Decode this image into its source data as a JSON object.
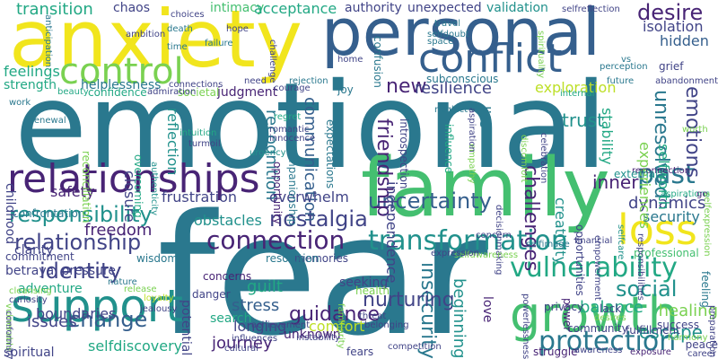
{
  "palette": {
    "purple": "#482475",
    "indigo": "#414487",
    "blue": "#355f8d",
    "steel": "#2a788e",
    "teal": "#21918c",
    "green": "#22a884",
    "lime": "#44bf70",
    "grass": "#7ad151",
    "yellowgreen": "#bddf26",
    "yellow": "#f1e51d"
  },
  "words": [
    {
      "text": "fear",
      "color": "steel"
    },
    {
      "text": "emotional",
      "color": "steel"
    },
    {
      "text": "family",
      "color": "lime"
    },
    {
      "text": "anxiety",
      "color": "yellow"
    },
    {
      "text": "personal",
      "color": "blue"
    },
    {
      "text": "relationships",
      "color": "purple"
    },
    {
      "text": "growth",
      "color": "lime"
    },
    {
      "text": "support",
      "color": "teal"
    },
    {
      "text": "conflict",
      "color": "blue"
    },
    {
      "text": "control",
      "color": "grass"
    },
    {
      "text": "loss",
      "color": "yellow"
    },
    {
      "text": "vulnerability",
      "color": "green"
    },
    {
      "text": "connection",
      "color": "purple"
    },
    {
      "text": "transformation",
      "color": "teal"
    },
    {
      "text": "relationship",
      "color": "indigo"
    },
    {
      "text": "protection",
      "color": "steel"
    },
    {
      "text": "responsibility",
      "color": "teal"
    },
    {
      "text": "change",
      "color": "blue"
    },
    {
      "text": "identity",
      "color": "indigo"
    },
    {
      "text": "desire",
      "color": "purple"
    },
    {
      "text": "past",
      "color": "steel"
    },
    {
      "text": "uncertainty",
      "color": "blue"
    },
    {
      "text": "unresolved",
      "color": "steel"
    },
    {
      "text": "emotions",
      "color": "indigo"
    },
    {
      "text": "social",
      "color": "teal"
    },
    {
      "text": "nostalgia",
      "color": "indigo"
    },
    {
      "text": "guidance",
      "color": "purple"
    },
    {
      "text": "insecurity",
      "color": "steel"
    },
    {
      "text": "new",
      "color": "purple"
    },
    {
      "text": "resilience",
      "color": "indigo"
    },
    {
      "text": "transition",
      "color": "green"
    },
    {
      "text": "intimacy",
      "color": "lime"
    },
    {
      "text": "acceptance",
      "color": "green"
    },
    {
      "text": "authority",
      "color": "indigo"
    },
    {
      "text": "unexpected",
      "color": "indigo"
    },
    {
      "text": "validation",
      "color": "teal"
    },
    {
      "text": "isolation",
      "color": "indigo"
    },
    {
      "text": "hidden",
      "color": "blue"
    },
    {
      "text": "trust",
      "color": "teal"
    },
    {
      "text": "stability",
      "color": "green"
    },
    {
      "text": "inner",
      "color": "purple"
    },
    {
      "text": "dynamics",
      "color": "indigo"
    },
    {
      "text": "security",
      "color": "steel"
    },
    {
      "text": "friendship",
      "color": "purple"
    },
    {
      "text": "communication",
      "color": "blue"
    },
    {
      "text": "recognition",
      "color": "steel"
    },
    {
      "text": "challenges",
      "color": "purple"
    },
    {
      "text": "exploration",
      "color": "yellowgreen"
    },
    {
      "text": "experiences",
      "color": "grass"
    },
    {
      "text": "selfworth",
      "color": "green"
    },
    {
      "text": "healing",
      "color": "grass"
    },
    {
      "text": "escape",
      "color": "teal"
    },
    {
      "text": "balance",
      "color": "green"
    },
    {
      "text": "nurturing",
      "color": "indigo"
    },
    {
      "text": "stress",
      "color": "blue"
    },
    {
      "text": "guilt",
      "color": "green"
    },
    {
      "text": "longing",
      "color": "indigo"
    },
    {
      "text": "journey",
      "color": "purple"
    },
    {
      "text": "boundaries",
      "color": "indigo"
    },
    {
      "text": "issues",
      "color": "indigo"
    },
    {
      "text": "freedom",
      "color": "purple"
    },
    {
      "text": "obstacles",
      "color": "teal"
    },
    {
      "text": "overwhelm",
      "color": "indigo"
    },
    {
      "text": "frustration",
      "color": "indigo"
    },
    {
      "text": "selfdiscovery",
      "color": "green"
    },
    {
      "text": "adventure",
      "color": "green"
    },
    {
      "text": "safety",
      "color": "purple"
    },
    {
      "text": "closure",
      "color": "indigo"
    },
    {
      "text": "reflection",
      "color": "teal"
    },
    {
      "text": "feelings",
      "color": "green"
    },
    {
      "text": "strength",
      "color": "green"
    },
    {
      "text": "helplessness",
      "color": "steel"
    },
    {
      "text": "connections",
      "color": "indigo"
    },
    {
      "text": "judgment",
      "color": "purple"
    },
    {
      "text": "chaos",
      "color": "indigo"
    },
    {
      "text": "comfort",
      "color": "yellowgreen"
    },
    {
      "text": "beginning",
      "color": "teal"
    },
    {
      "text": "love",
      "color": "purple"
    },
    {
      "text": "independence",
      "color": "indigo"
    },
    {
      "text": "creativity",
      "color": "teal"
    },
    {
      "text": "life",
      "color": "steel"
    },
    {
      "text": "search",
      "color": "green"
    },
    {
      "text": "potential",
      "color": "indigo"
    },
    {
      "text": "childhood",
      "color": "indigo"
    },
    {
      "text": "confidence",
      "color": "green"
    },
    {
      "text": "betrayal pressure",
      "color": "indigo"
    },
    {
      "text": "spiritual",
      "color": "indigo"
    },
    {
      "text": "seeking",
      "color": "indigo"
    },
    {
      "text": "unknown",
      "color": "purple"
    },
    {
      "text": "societal",
      "color": "grass"
    },
    {
      "text": "clarity",
      "color": "indigo"
    },
    {
      "text": "overcoming",
      "color": "green"
    },
    {
      "text": "confrontation",
      "color": "steel"
    },
    {
      "text": "commitment",
      "color": "indigo"
    },
    {
      "text": "memories",
      "color": "indigo"
    },
    {
      "text": "resolution",
      "color": "steel"
    },
    {
      "text": "wisdom",
      "color": "steel"
    },
    {
      "text": "future",
      "color": "steel"
    },
    {
      "text": "grief",
      "color": "indigo"
    },
    {
      "text": "perception",
      "color": "steel"
    },
    {
      "text": "vs",
      "color": "steel"
    },
    {
      "text": "professional",
      "color": "lime"
    },
    {
      "text": "lack",
      "color": "indigo"
    },
    {
      "text": "community",
      "color": "indigo"
    },
    {
      "text": "success",
      "color": "indigo"
    },
    {
      "text": "fulfillment",
      "color": "indigo"
    },
    {
      "text": "struggle",
      "color": "purple"
    },
    {
      "text": "peace",
      "color": "indigo"
    },
    {
      "text": "career",
      "color": "indigo"
    },
    {
      "text": "internal",
      "color": "green"
    },
    {
      "text": "subconscious",
      "color": "steel"
    },
    {
      "text": "confusion",
      "color": "steel"
    },
    {
      "text": "introspection",
      "color": "indigo"
    },
    {
      "text": "companionship",
      "color": "steel"
    },
    {
      "text": "opportunity",
      "color": "purple"
    },
    {
      "text": "expectations",
      "color": "steel"
    },
    {
      "text": "joy",
      "color": "steel"
    },
    {
      "text": "neglect",
      "color": "steel"
    },
    {
      "text": "empathy",
      "color": "grass"
    },
    {
      "text": "aspiration",
      "color": "indigo"
    },
    {
      "text": "influence",
      "color": "green"
    },
    {
      "text": "opportunities",
      "color": "indigo"
    },
    {
      "text": "discomfort",
      "color": "grass"
    },
    {
      "text": "celebration",
      "color": "indigo"
    },
    {
      "text": "decisionmaking",
      "color": "indigo"
    },
    {
      "text": "health",
      "color": "grass"
    },
    {
      "text": "danger",
      "color": "indigo"
    },
    {
      "text": "concerns",
      "color": "purple"
    },
    {
      "text": "threat",
      "color": "indigo"
    },
    {
      "text": "belonging",
      "color": "indigo"
    },
    {
      "text": "competition",
      "color": "indigo"
    },
    {
      "text": "instability",
      "color": "indigo"
    },
    {
      "text": "cultural",
      "color": "indigo"
    },
    {
      "text": "influences",
      "color": "indigo"
    },
    {
      "text": "achievement",
      "color": "indigo"
    },
    {
      "text": "rejection",
      "color": "steel"
    },
    {
      "text": "courage",
      "color": "indigo"
    },
    {
      "text": "need",
      "color": "indigo"
    },
    {
      "text": "regret",
      "color": "green"
    },
    {
      "text": "romantic",
      "color": "indigo"
    },
    {
      "text": "innocence",
      "color": "indigo"
    },
    {
      "text": "urgency",
      "color": "teal"
    },
    {
      "text": "turmoil",
      "color": "indigo"
    },
    {
      "text": "intuition",
      "color": "green"
    },
    {
      "text": "authenticity",
      "color": "teal"
    },
    {
      "text": "reconciliation",
      "color": "grass"
    },
    {
      "text": "renewal",
      "color": "steel"
    },
    {
      "text": "work",
      "color": "steel"
    },
    {
      "text": "beauty",
      "color": "green"
    },
    {
      "text": "admiration",
      "color": "indigo"
    },
    {
      "text": "time",
      "color": "steel"
    },
    {
      "text": "failure",
      "color": "steel"
    },
    {
      "text": "hope",
      "color": "indigo"
    },
    {
      "text": "challenge",
      "color": "indigo"
    },
    {
      "text": "ambition",
      "color": "indigo"
    },
    {
      "text": "death",
      "color": "steel"
    },
    {
      "text": "choices",
      "color": "indigo"
    },
    {
      "text": "anticipation",
      "color": "steel"
    },
    {
      "text": "home",
      "color": "indigo"
    },
    {
      "text": "selfreflection",
      "color": "indigo"
    },
    {
      "text": "travel",
      "color": "steel"
    },
    {
      "text": "selfdoubt",
      "color": "steel"
    },
    {
      "text": "space",
      "color": "steel"
    },
    {
      "text": "spirituality",
      "color": "grass"
    },
    {
      "text": "abandonment",
      "color": "indigo"
    },
    {
      "text": "reconnection",
      "color": "purple"
    },
    {
      "text": "external",
      "color": "teal"
    },
    {
      "text": "aspirations",
      "color": "green"
    },
    {
      "text": "go",
      "color": "purple"
    },
    {
      "text": "selfexpression",
      "color": "grass"
    },
    {
      "text": "preparation",
      "color": "indigo"
    },
    {
      "text": "feeling",
      "color": "steel"
    },
    {
      "text": "selfcare",
      "color": "teal"
    },
    {
      "text": "selfimage",
      "color": "steel"
    },
    {
      "text": "financial",
      "color": "indigo"
    },
    {
      "text": "empowerment",
      "color": "indigo"
    },
    {
      "text": "responsibilities",
      "color": "indigo"
    },
    {
      "text": "power",
      "color": "purple"
    },
    {
      "text": "desires",
      "color": "grass"
    },
    {
      "text": "privacy",
      "color": "indigo"
    },
    {
      "text": "harmony",
      "color": "grass"
    },
    {
      "text": "awareness",
      "color": "indigo"
    },
    {
      "text": "exposure",
      "color": "purple"
    },
    {
      "text": "powerlessness",
      "color": "indigo"
    },
    {
      "text": "fears",
      "color": "indigo"
    },
    {
      "text": "familiarity",
      "color": "grass"
    },
    {
      "text": "selfawareness",
      "color": "grass"
    },
    {
      "text": "concern",
      "color": "indigo"
    },
    {
      "text": "expression",
      "color": "indigo"
    },
    {
      "text": "nature",
      "color": "steel"
    },
    {
      "text": "release",
      "color": "grass"
    },
    {
      "text": "jealousy",
      "color": "indigo"
    },
    {
      "text": "loyalty",
      "color": "yellowgreen"
    },
    {
      "text": "curiosity",
      "color": "indigo"
    },
    {
      "text": "cleansing",
      "color": "grass"
    },
    {
      "text": "vulnerable",
      "color": "grass"
    },
    {
      "text": "conformity",
      "color": "indigo"
    },
    {
      "text": "worth",
      "color": "grass"
    }
  ]
}
